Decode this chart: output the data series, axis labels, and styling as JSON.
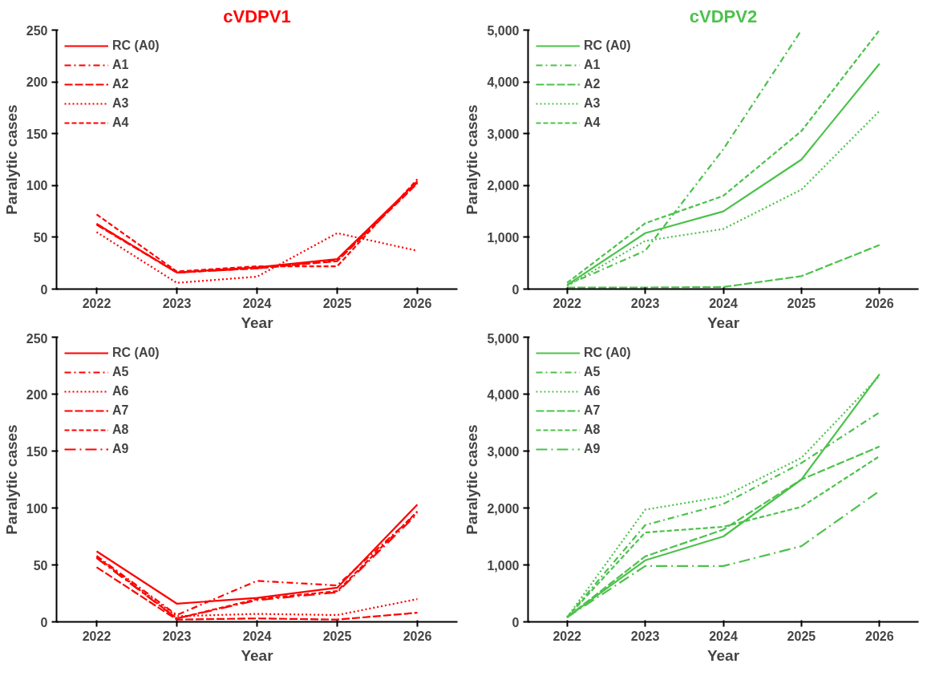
{
  "chart_data": [
    {
      "type": "line",
      "title": "cVDPV1",
      "xlabel": "Year",
      "ylabel": "Paralytic cases",
      "categories": [
        "2022",
        "2023",
        "2024",
        "2025",
        "2026"
      ],
      "ylim": [
        0,
        250
      ],
      "yticks": [
        0,
        50,
        100,
        150,
        200,
        250
      ],
      "grid": false,
      "legend": "top left",
      "marker": "none",
      "series": [
        {
          "name": "RC (A0)",
          "color": "#ff0000",
          "line_style": "solid",
          "values": [
            63,
            16,
            21,
            29,
            104
          ]
        },
        {
          "name": "A1",
          "color": "#ff0000",
          "line_style": "dashdot",
          "values": [
            63,
            16,
            20,
            28,
            103
          ]
        },
        {
          "name": "A2",
          "color": "#ff0000",
          "line_style": "longdash",
          "values": [
            62,
            16,
            20,
            27,
            102
          ]
        },
        {
          "name": "A3",
          "color": "#ff0000",
          "line_style": "dotted",
          "values": [
            55,
            6,
            12,
            54,
            37
          ]
        },
        {
          "name": "A4",
          "color": "#ff0000",
          "line_style": "dashed",
          "values": [
            72,
            17,
            22,
            22,
            106
          ]
        }
      ]
    },
    {
      "type": "line",
      "title": "cVDPV2",
      "xlabel": "Year",
      "ylabel": "Paralytic cases",
      "categories": [
        "2022",
        "2023",
        "2024",
        "2025",
        "2026"
      ],
      "ylim": [
        0,
        5000
      ],
      "yticks": [
        0,
        {
          "value": 1000,
          "label": "1,000"
        },
        {
          "value": 2000,
          "label": "2,000"
        },
        {
          "value": 3000,
          "label": "3,000"
        },
        {
          "value": 4000,
          "label": "4,000"
        },
        {
          "value": 5000,
          "label": "5,000"
        }
      ],
      "grid": false,
      "legend": "top left",
      "marker": "none",
      "series": [
        {
          "name": "RC (A0)",
          "color": "#4cc24c",
          "line_style": "solid",
          "values": [
            80,
            1080,
            1500,
            2500,
            4350
          ]
        },
        {
          "name": "A1",
          "color": "#4cc24c",
          "line_style": "dashdot",
          "values": [
            80,
            740,
            2700,
            5000,
            null
          ]
        },
        {
          "name": "A2",
          "color": "#4cc24c",
          "line_style": "longdash",
          "values": [
            30,
            30,
            40,
            250,
            850
          ]
        },
        {
          "name": "A3",
          "color": "#4cc24c",
          "line_style": "dotted",
          "values": [
            60,
            930,
            1160,
            1920,
            3440
          ]
        },
        {
          "name": "A4",
          "color": "#4cc24c",
          "line_style": "dashed",
          "values": [
            120,
            1270,
            1800,
            3050,
            5000
          ]
        }
      ]
    },
    {
      "type": "line",
      "xlabel": "Year",
      "ylabel": "Paralytic cases",
      "categories": [
        "2022",
        "2023",
        "2024",
        "2025",
        "2026"
      ],
      "ylim": [
        0,
        250
      ],
      "yticks": [
        0,
        50,
        100,
        150,
        200,
        250
      ],
      "grid": false,
      "legend": "top left",
      "marker": "none",
      "series": [
        {
          "name": "RC (A0)",
          "color": "#ff0000",
          "line_style": "solid",
          "values": [
            62,
            16,
            21,
            30,
            103
          ]
        },
        {
          "name": "A5",
          "color": "#ff0000",
          "line_style": "dashdot",
          "values": [
            58,
            6,
            36,
            32,
            96
          ]
        },
        {
          "name": "A6",
          "color": "#ff0000",
          "line_style": "dotted",
          "values": [
            57,
            5,
            7,
            6,
            20
          ]
        },
        {
          "name": "A7",
          "color": "#ff0000",
          "line_style": "longdash",
          "values": [
            48,
            2,
            3,
            2,
            8
          ]
        },
        {
          "name": "A8",
          "color": "#ff0000",
          "line_style": "dashed",
          "values": [
            57,
            3,
            20,
            27,
            97
          ]
        },
        {
          "name": "A9",
          "color": "#ff0000",
          "line_style": "longdashdot",
          "values": [
            56,
            3,
            19,
            26,
            95
          ]
        }
      ]
    },
    {
      "type": "line",
      "xlabel": "Year",
      "ylabel": "Paralytic cases",
      "categories": [
        "2022",
        "2023",
        "2024",
        "2025",
        "2026"
      ],
      "ylim": [
        0,
        5000
      ],
      "yticks": [
        0,
        {
          "value": 1000,
          "label": "1,000"
        },
        {
          "value": 2000,
          "label": "2,000"
        },
        {
          "value": 3000,
          "label": "3,000"
        },
        {
          "value": 4000,
          "label": "4,000"
        },
        {
          "value": 5000,
          "label": "5,000"
        }
      ],
      "grid": false,
      "legend": "top left",
      "marker": "none",
      "series": [
        {
          "name": "RC (A0)",
          "color": "#4cc24c",
          "line_style": "solid",
          "values": [
            80,
            1080,
            1500,
            2500,
            4350
          ]
        },
        {
          "name": "A5",
          "color": "#4cc24c",
          "line_style": "dashdot",
          "values": [
            80,
            1700,
            2070,
            2790,
            3680
          ]
        },
        {
          "name": "A6",
          "color": "#4cc24c",
          "line_style": "dotted",
          "values": [
            80,
            1970,
            2200,
            2880,
            4320
          ]
        },
        {
          "name": "A7",
          "color": "#4cc24c",
          "line_style": "longdash",
          "values": [
            80,
            1150,
            1620,
            2500,
            3080
          ]
        },
        {
          "name": "A8",
          "color": "#4cc24c",
          "line_style": "dashed",
          "values": [
            80,
            1570,
            1670,
            2020,
            2910
          ]
        },
        {
          "name": "A9",
          "color": "#4cc24c",
          "line_style": "longdashdot",
          "values": [
            80,
            980,
            980,
            1330,
            2300
          ]
        }
      ]
    }
  ]
}
